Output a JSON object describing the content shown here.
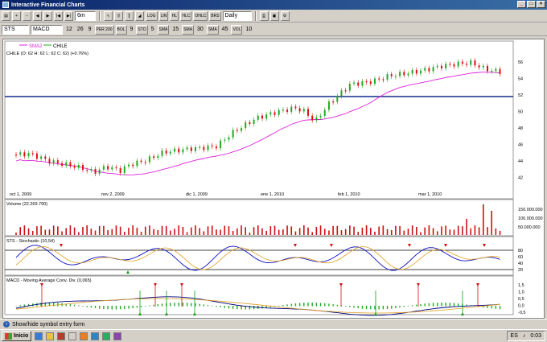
{
  "window": {
    "title": "Interactive Financial Charts"
  },
  "toolbar": {
    "symbol": "STS",
    "bar_size": "6m",
    "interval": "Daily",
    "buttons": [
      "LOG",
      "LIN",
      "HL",
      "HLC",
      "OHLC",
      "BRS"
    ]
  },
  "indicator_bar": {
    "indicator": "MACD",
    "macd_params": [
      "12",
      "26",
      "9"
    ],
    "btn_per": "PER 200",
    "btn_boll": "BOL",
    "boll_period": "9",
    "btn_sto": "STO",
    "sto_period": "5",
    "btn_sma1": "SMA",
    "sma1_period": "15",
    "btn_sma2": "SMA",
    "sma2_period": "30",
    "btn_sma3": "SMA",
    "sma3_period": "45",
    "btn_vol": "VOL",
    "vol_period": "10"
  },
  "price_panel": {
    "legend_sma": "SMA2",
    "legend_sym": "CHILE",
    "header": "CHILE (O: 62  H: 62  L: 62  C: 62) (+0.76%)",
    "y_ticks": [
      "56",
      "54",
      "52",
      "50",
      "48",
      "46",
      "44",
      "42"
    ],
    "x_labels": [
      "oct 1, 2009",
      "nov 2, 2009",
      "dic 1, 2009",
      "ene 1, 2010",
      "feb 1, 2010",
      "mar 1, 2010"
    ]
  },
  "volume_panel": {
    "header": "Volume (22.269.790)",
    "y_ticks": [
      "150.000.000",
      "100.000.000",
      "50.000.000"
    ]
  },
  "sto_panel": {
    "header": "STS - Stochastic (10,54)",
    "y_ticks": [
      "80",
      "60",
      "40",
      "20"
    ]
  },
  "macd_panel": {
    "header": "MACD - Moving Average Conv. Div. (0,065)",
    "y_ticks": [
      "1,5",
      "1,0",
      "0,5",
      "0,0",
      "-0,5"
    ]
  },
  "statusbar": {
    "text": "Show/hide symbol entry form"
  },
  "taskbar": {
    "start": "Inicio",
    "lang": "ES",
    "clock": "0:03"
  },
  "colors": {
    "up": "#22aa22",
    "down": "#dd1111",
    "sma": "#dd22dd",
    "line": "#000080",
    "signal": "#e0a020",
    "hline": "#102a8a"
  }
}
